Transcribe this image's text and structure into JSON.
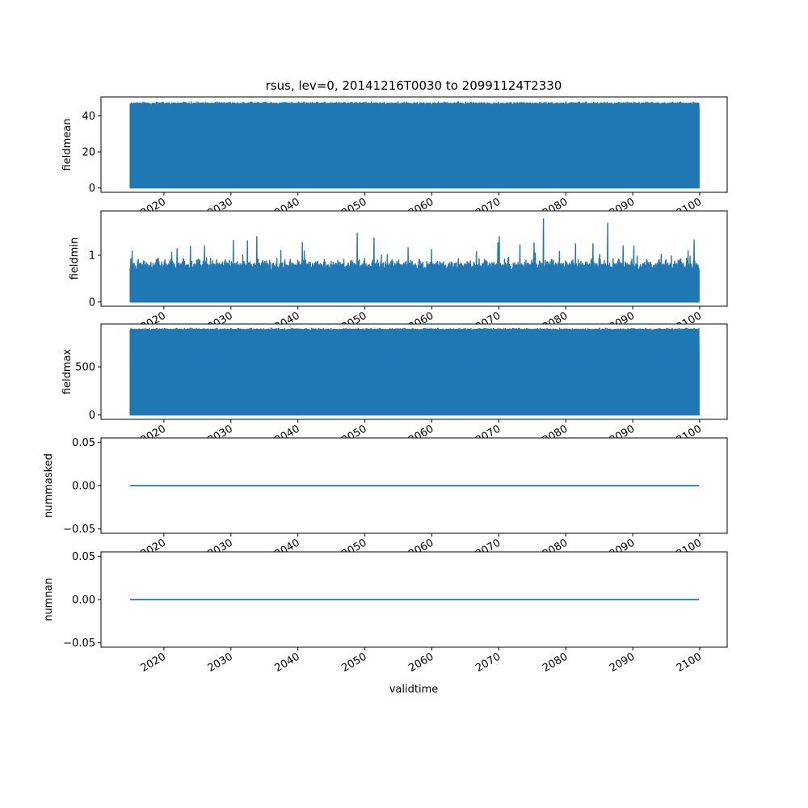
{
  "chart_data": {
    "type": "line",
    "title": "rsus, lev=0, 20141216T0030 to 20991124T2330",
    "xlabel": "validtime",
    "x_range": [
      2014.96,
      2099.9
    ],
    "xlim": [
      2010.6,
      2104.1
    ],
    "x_ticks": [
      2020,
      2030,
      2040,
      2050,
      2060,
      2070,
      2080,
      2090,
      2100
    ],
    "x_tick_labels": [
      "2020",
      "2030",
      "2040",
      "2050",
      "2060",
      "2070",
      "2080",
      "2090",
      "2100"
    ],
    "color": "#1f77b4",
    "grid": false,
    "legend": "none",
    "panels": [
      {
        "ylabel": "fieldmean",
        "ylim": [
          -2.4,
          50.5
        ],
        "y_ticks": [
          0,
          20,
          40
        ],
        "y_tick_labels": [
          "0",
          "20",
          "40"
        ],
        "pattern": "band",
        "floor": 0,
        "base_peak": 47.0,
        "peak_amp": 0.8,
        "trough": 40.0,
        "seed": 11
      },
      {
        "ylabel": "fieldmin",
        "ylim": [
          -0.09,
          1.95
        ],
        "y_ticks": [
          0,
          1
        ],
        "y_tick_labels": [
          "0",
          "1"
        ],
        "pattern": "spiky",
        "floor": 0,
        "base_peak": 0.8,
        "peak_amp": 0.15,
        "trough": 0.5,
        "spike_max": 1.88,
        "seed": 7
      },
      {
        "ylabel": "fieldmax",
        "ylim": [
          -45,
          945
        ],
        "y_ticks": [
          0,
          500
        ],
        "y_tick_labels": [
          "0",
          "500"
        ],
        "pattern": "band",
        "floor": 0,
        "base_peak": 890,
        "peak_amp": 12,
        "trough": 470,
        "seed": 3
      },
      {
        "ylabel": "nummasked",
        "ylim": [
          -0.055,
          0.055
        ],
        "y_ticks": [
          -0.05,
          0,
          0.05
        ],
        "y_tick_labels": [
          "−0.05",
          "0.00",
          "0.05"
        ],
        "pattern": "flat",
        "value": 0
      },
      {
        "ylabel": "numnan",
        "ylim": [
          -0.055,
          0.055
        ],
        "y_ticks": [
          -0.05,
          0,
          0.05
        ],
        "y_tick_labels": [
          "−0.05",
          "0.00",
          "0.05"
        ],
        "pattern": "flat",
        "value": 0
      }
    ]
  }
}
